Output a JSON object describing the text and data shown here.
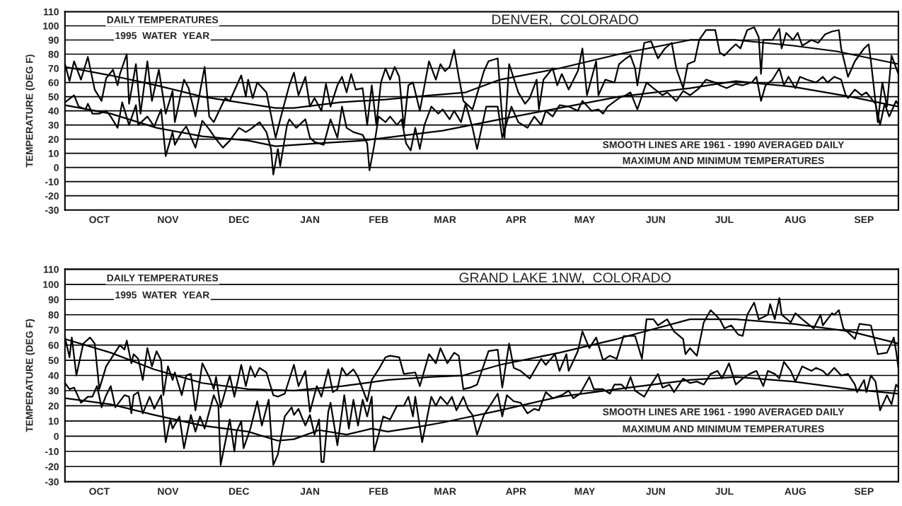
{
  "chart_data": [
    {
      "type": "line",
      "title": "DENVER,  COLORADO",
      "ylabel": "TEMPERATURE (DEG F)",
      "annotations": [
        "DAILY TEMPERATURES",
        "1995  WATER  YEAR",
        "SMOOTH LINES ARE 1961 - 1990 AVERAGED DAILY",
        "MAXIMUM AND MINIMUM TEMPERATURES"
      ],
      "xlim": [
        "1994-10-01",
        "1995-09-30"
      ],
      "xticks": [
        {
          "value": "1994-10-16",
          "label": "OCT"
        },
        {
          "value": "1994-11-15",
          "label": "NOV"
        },
        {
          "value": "1994-12-16",
          "label": "DEC"
        },
        {
          "value": "1995-01-16",
          "label": "JAN"
        },
        {
          "value": "1995-02-15",
          "label": "FEB"
        },
        {
          "value": "1995-03-16",
          "label": "MAR"
        },
        {
          "value": "1995-04-16",
          "label": "APR"
        },
        {
          "value": "1995-05-16",
          "label": "MAY"
        },
        {
          "value": "1995-06-16",
          "label": "JUN"
        },
        {
          "value": "1995-07-16",
          "label": "JUL"
        },
        {
          "value": "1995-08-16",
          "label": "AUG"
        },
        {
          "value": "1995-09-15",
          "label": "SEP"
        }
      ],
      "ylim": [
        -30,
        110
      ],
      "yticks": [
        -30,
        -20,
        -10,
        0,
        10,
        20,
        30,
        40,
        50,
        60,
        70,
        80,
        90,
        100,
        110
      ],
      "grid": "y",
      "series": [
        {
          "color": "#000000",
          "x": [
            "1994-10-01",
            "1994-10-03",
            "1994-10-05",
            "1994-10-08",
            "1994-10-11",
            "1994-10-14",
            "1994-10-17",
            "1994-10-19",
            "1994-10-22",
            "1994-10-24",
            "1994-10-25",
            "1994-10-28",
            "1994-10-29",
            "1994-11-01",
            "1994-11-03",
            "1994-11-06",
            "1994-11-08",
            "1994-11-11",
            "1994-11-14",
            "1994-11-17",
            "1994-11-18",
            "1994-11-20",
            "1994-11-22",
            "1994-11-24",
            "1994-11-27",
            "1994-12-01",
            "1994-12-03",
            "1994-12-05",
            "1994-12-10",
            "1994-12-12",
            "1994-12-17",
            "1994-12-19",
            "1994-12-20",
            "1994-12-22",
            "1994-12-24",
            "1994-12-28",
            "1995-01-01",
            "1995-01-04",
            "1995-01-07",
            "1995-01-09",
            "1995-01-11",
            "1995-01-14",
            "1995-01-16",
            "1995-01-18",
            "1995-01-21",
            "1995-01-23",
            "1995-01-25",
            "1995-01-28",
            "1995-01-30",
            "1995-02-01",
            "1995-02-03",
            "1995-02-05",
            "1995-02-08",
            "1995-02-10",
            "1995-02-12",
            "1995-02-14",
            "1995-02-16",
            "1995-02-18",
            "1995-02-20",
            "1995-02-22",
            "1995-02-24",
            "1995-02-26",
            "1995-02-28",
            "1995-03-02",
            "1995-03-05",
            "1995-03-09",
            "1995-03-12",
            "1995-03-14",
            "1995-03-16",
            "1995-03-18",
            "1995-03-20",
            "1995-03-22",
            "1995-03-24",
            "1995-03-28",
            "1995-04-02",
            "1995-04-04",
            "1995-04-08",
            "1995-04-10",
            "1995-04-11",
            "1995-04-13",
            "1995-04-17",
            "1995-04-20",
            "1995-04-22",
            "1995-04-25",
            "1995-04-26",
            "1995-04-28",
            "1995-05-02",
            "1995-05-04",
            "1995-05-06",
            "1995-05-09",
            "1995-05-13",
            "1995-05-15",
            "1995-05-17",
            "1995-05-21",
            "1995-05-22",
            "1995-05-25",
            "1995-05-29",
            "1995-05-31",
            "1995-06-03",
            "1995-06-05",
            "1995-06-07",
            "1995-06-08",
            "1995-06-11",
            "1995-06-14",
            "1995-06-17",
            "1995-06-20",
            "1995-06-23",
            "1995-06-25",
            "1995-06-28",
            "1995-06-30",
            "1995-07-03",
            "1995-07-05",
            "1995-07-08",
            "1995-07-12",
            "1995-07-14",
            "1995-07-16",
            "1995-07-19",
            "1995-07-21",
            "1995-07-23",
            "1995-07-26",
            "1995-07-29",
            "1995-07-31",
            "1995-08-01",
            "1995-08-02",
            "1995-08-06",
            "1995-08-09",
            "1995-08-10",
            "1995-08-12",
            "1995-08-15",
            "1995-08-17",
            "1995-08-19",
            "1995-08-23",
            "1995-08-26",
            "1995-08-29",
            "1995-09-01",
            "1995-09-04",
            "1995-09-05",
            "1995-09-08",
            "1995-09-11",
            "1995-09-15",
            "1995-09-17",
            "1995-09-18",
            "1995-09-21",
            "1995-09-23",
            "1995-09-25",
            "1995-09-27",
            "1995-09-30"
          ],
          "values": [
            73,
            61,
            75,
            62,
            78,
            55,
            47,
            63,
            69,
            58,
            66,
            80,
            45,
            73,
            38,
            75,
            47,
            69,
            38,
            54,
            32,
            47,
            62,
            56,
            36,
            71,
            36,
            32,
            49,
            47,
            65,
            50,
            62,
            49,
            60,
            53,
            21,
            40,
            58,
            67,
            51,
            64,
            43,
            49,
            40,
            59,
            43,
            58,
            64,
            53,
            66,
            55,
            56,
            30,
            58,
            30,
            60,
            70,
            62,
            71,
            64,
            28,
            58,
            60,
            40,
            75,
            62,
            73,
            68,
            71,
            83,
            64,
            47,
            41,
            68,
            75,
            77,
            34,
            21,
            73,
            53,
            45,
            49,
            62,
            41,
            62,
            70,
            58,
            66,
            55,
            68,
            84,
            51,
            75,
            51,
            62,
            60,
            73,
            77,
            79,
            70,
            58,
            88,
            89,
            77,
            84,
            88,
            70,
            56,
            73,
            75,
            90,
            97,
            97,
            81,
            79,
            84,
            87,
            84,
            97,
            99,
            92,
            66,
            90,
            90,
            98,
            84,
            95,
            90,
            95,
            86,
            90,
            88,
            94,
            96,
            97,
            84,
            64,
            75,
            84,
            87,
            75,
            32,
            60,
            43,
            79,
            66
          ]
        },
        {
          "color": "#000000",
          "x": [
            "1994-10-01",
            "1994-10-05",
            "1994-10-07",
            "1994-10-10",
            "1994-10-11",
            "1994-10-13",
            "1994-10-16",
            "1994-10-19",
            "1994-10-21",
            "1994-10-24",
            "1994-10-26",
            "1994-10-29",
            "1994-11-01",
            "1994-11-02",
            "1994-11-06",
            "1994-11-09",
            "1994-11-12",
            "1994-11-14",
            "1994-11-17",
            "1994-11-18",
            "1994-11-21",
            "1994-11-23",
            "1994-11-27",
            "1994-11-30",
            "1994-12-03",
            "1994-12-06",
            "1994-12-09",
            "1994-12-12",
            "1994-12-16",
            "1994-12-19",
            "1994-12-21",
            "1994-12-25",
            "1994-12-28",
            "1994-12-30",
            "1994-12-31",
            "1995-01-02",
            "1995-01-03",
            "1995-01-06",
            "1995-01-07",
            "1995-01-10",
            "1995-01-14",
            "1995-01-16",
            "1995-01-18",
            "1995-01-22",
            "1995-01-25",
            "1995-01-28",
            "1995-01-30",
            "1995-02-01",
            "1995-02-04",
            "1995-02-08",
            "1995-02-10",
            "1995-02-11",
            "1995-02-13",
            "1995-02-15",
            "1995-02-18",
            "1995-02-20",
            "1995-02-23",
            "1995-02-25",
            "1995-02-27",
            "1995-03-01",
            "1995-03-03",
            "1995-03-05",
            "1995-03-07",
            "1995-03-10",
            "1995-03-13",
            "1995-03-15",
            "1995-03-18",
            "1995-03-20",
            "1995-03-23",
            "1995-03-25",
            "1995-03-28",
            "1995-03-30",
            "1995-04-03",
            "1995-04-08",
            "1995-04-10",
            "1995-04-14",
            "1995-04-17",
            "1995-04-21",
            "1995-04-24",
            "1995-04-27",
            "1995-04-29",
            "1995-05-02",
            "1995-05-05",
            "1995-05-09",
            "1995-05-13",
            "1995-05-15",
            "1995-05-19",
            "1995-05-22",
            "1995-05-24",
            "1995-05-26",
            "1995-05-31",
            "1995-06-03",
            "1995-06-05",
            "1995-06-08",
            "1995-06-12",
            "1995-06-15",
            "1995-06-19",
            "1995-06-21",
            "1995-06-25",
            "1995-06-28",
            "1995-07-01",
            "1995-07-05",
            "1995-07-08",
            "1995-07-12",
            "1995-07-14",
            "1995-07-17",
            "1995-07-21",
            "1995-07-24",
            "1995-07-28",
            "1995-07-30",
            "1995-08-01",
            "1995-08-03",
            "1995-08-06",
            "1995-08-09",
            "1995-08-11",
            "1995-08-13",
            "1995-08-16",
            "1995-08-18",
            "1995-08-21",
            "1995-08-25",
            "1995-08-28",
            "1995-08-30",
            "1995-09-02",
            "1995-09-05",
            "1995-09-07",
            "1995-09-08",
            "1995-09-11",
            "1995-09-14",
            "1995-09-16",
            "1995-09-20",
            "1995-09-22",
            "1995-09-24",
            "1995-09-26",
            "1995-09-29",
            "1995-09-30"
          ],
          "values": [
            46,
            51,
            43,
            41,
            45,
            38,
            38,
            40,
            36,
            28,
            46,
            30,
            44,
            30,
            36,
            29,
            41,
            8,
            25,
            16,
            25,
            29,
            14,
            33,
            27,
            20,
            14,
            19,
            28,
            25,
            27,
            32,
            25,
            13,
            -5,
            13,
            1,
            30,
            34,
            28,
            34,
            21,
            18,
            16,
            34,
            21,
            43,
            28,
            25,
            23,
            17,
            -2,
            15,
            36,
            32,
            36,
            30,
            34,
            17,
            12,
            28,
            13,
            30,
            43,
            38,
            41,
            34,
            40,
            32,
            45,
            28,
            13,
            43,
            43,
            21,
            43,
            32,
            28,
            36,
            30,
            40,
            36,
            44,
            43,
            40,
            47,
            40,
            41,
            38,
            43,
            49,
            51,
            53,
            41,
            60,
            56,
            51,
            53,
            47,
            54,
            51,
            56,
            62,
            60,
            58,
            56,
            59,
            58,
            60,
            64,
            47,
            58,
            62,
            70,
            58,
            64,
            56,
            64,
            62,
            60,
            64,
            60,
            64,
            62,
            51,
            49,
            55,
            51,
            53,
            45,
            30,
            45,
            36,
            47,
            44
          ]
        },
        {
          "color": "#000000",
          "x": [
            "1994-10-01",
            "1994-10-21",
            "1994-11-10",
            "1994-11-30",
            "1994-12-20",
            "1995-01-01",
            "1995-01-09",
            "1995-01-29",
            "1995-02-18",
            "1995-03-10",
            "1995-03-25",
            "1995-04-09",
            "1995-05-05",
            "1995-05-31",
            "1995-07-01",
            "1995-07-21",
            "1995-08-15",
            "1995-09-03",
            "1995-09-30"
          ],
          "values": [
            71,
            65,
            58,
            50,
            45,
            42,
            42,
            46,
            48,
            51,
            53,
            62,
            70,
            80,
            90,
            90,
            86,
            82,
            73
          ]
        },
        {
          "color": "#000000",
          "x": [
            "1994-10-01",
            "1994-10-21",
            "1994-11-10",
            "1994-11-30",
            "1994-12-20",
            "1995-01-01",
            "1995-01-19",
            "1995-02-08",
            "1995-02-28",
            "1995-03-15",
            "1995-04-09",
            "1995-05-05",
            "1995-05-31",
            "1995-07-01",
            "1995-07-21",
            "1995-08-15",
            "1995-09-09",
            "1995-09-30"
          ],
          "values": [
            44,
            38,
            28,
            22,
            19,
            15,
            17,
            19,
            23,
            26,
            34,
            42,
            50,
            56,
            61,
            57,
            50,
            43
          ]
        }
      ]
    },
    {
      "type": "line",
      "title": "GRAND LAKE 1NW,  COLORADO",
      "ylabel": "TEMPERATURE (DEG F)",
      "annotations": [
        "DAILY TEMPERATURES",
        "1995  WATER  YEAR",
        "SMOOTH LINES ARE 1961 - 1990 AVERAGED DAILY",
        "MAXIMUM AND MINIMUM TEMPERATURES"
      ],
      "xlim": [
        "1994-10-01",
        "1995-09-30"
      ],
      "xticks": [
        {
          "value": "1994-10-16",
          "label": "OCT"
        },
        {
          "value": "1994-11-15",
          "label": "NOV"
        },
        {
          "value": "1994-12-16",
          "label": "DEC"
        },
        {
          "value": "1995-01-16",
          "label": "JAN"
        },
        {
          "value": "1995-02-15",
          "label": "FEB"
        },
        {
          "value": "1995-03-16",
          "label": "MAR"
        },
        {
          "value": "1995-04-16",
          "label": "APR"
        },
        {
          "value": "1995-05-16",
          "label": "MAY"
        },
        {
          "value": "1995-06-16",
          "label": "JUN"
        },
        {
          "value": "1995-07-16",
          "label": "JUL"
        },
        {
          "value": "1995-08-16",
          "label": "AUG"
        },
        {
          "value": "1995-09-15",
          "label": "SEP"
        }
      ],
      "ylim": [
        -30,
        110
      ],
      "yticks": [
        -30,
        -20,
        -10,
        0,
        10,
        20,
        30,
        40,
        50,
        60,
        70,
        80,
        90,
        100,
        110
      ],
      "grid": "y",
      "series": [
        {
          "color": "#000000",
          "x": [
            "1994-10-01",
            "1994-10-03",
            "1994-10-04",
            "1994-10-06",
            "1994-10-09",
            "1994-10-12",
            "1994-10-14",
            "1994-10-16",
            "1994-10-19",
            "1994-10-22",
            "1994-10-25",
            "1994-10-27",
            "1994-10-28",
            "1994-10-30",
            "1994-10-31",
            "1994-11-02",
            "1994-11-04",
            "1994-11-06",
            "1994-11-08",
            "1994-11-10",
            "1994-11-12",
            "1994-11-13",
            "1994-11-15",
            "1994-11-17",
            "1994-11-18",
            "1994-11-21",
            "1994-11-23",
            "1994-11-25",
            "1994-11-27",
            "1994-11-30",
            "1994-12-03",
            "1994-12-05",
            "1994-12-06",
            "1994-12-08",
            "1994-12-12",
            "1994-12-14",
            "1994-12-17",
            "1994-12-19",
            "1994-12-21",
            "1994-12-23",
            "1994-12-25",
            "1994-12-28",
            "1994-12-31",
            "1995-01-02",
            "1995-01-05",
            "1995-01-09",
            "1995-01-11",
            "1995-01-14",
            "1995-01-16",
            "1995-01-19",
            "1995-01-21",
            "1995-01-24",
            "1995-01-26",
            "1995-01-28",
            "1995-01-30",
            "1995-02-01",
            "1995-02-04",
            "1995-02-06",
            "1995-02-10",
            "1995-02-12",
            "1995-02-15",
            "1995-02-18",
            "1995-02-20",
            "1995-02-24",
            "1995-02-26",
            "1995-03-03",
            "1995-03-05",
            "1995-03-09",
            "1995-03-12",
            "1995-03-14",
            "1995-03-17",
            "1995-03-20",
            "1995-03-22",
            "1995-03-24",
            "1995-03-27",
            "1995-03-30",
            "1995-04-04",
            "1995-04-08",
            "1995-04-10",
            "1995-04-13",
            "1995-04-15",
            "1995-04-18",
            "1995-04-22",
            "1995-04-27",
            "1995-04-29",
            "1995-05-03",
            "1995-05-05",
            "1995-05-08",
            "1995-05-09",
            "1995-05-13",
            "1995-05-15",
            "1995-05-18",
            "1995-05-21",
            "1995-05-24",
            "1995-05-27",
            "1995-05-30",
            "1995-06-02",
            "1995-06-07",
            "1995-06-10",
            "1995-06-12",
            "1995-06-15",
            "1995-06-17",
            "1995-06-21",
            "1995-06-24",
            "1995-06-28",
            "1995-06-29",
            "1995-07-01",
            "1995-07-04",
            "1995-07-07",
            "1995-07-10",
            "1995-07-14",
            "1995-07-16",
            "1995-07-19",
            "1995-07-22",
            "1995-07-24",
            "1995-07-26",
            "1995-07-29",
            "1995-07-31",
            "1995-08-04",
            "1995-08-05",
            "1995-08-07",
            "1995-08-09",
            "1995-08-10",
            "1995-08-14",
            "1995-08-16",
            "1995-08-19",
            "1995-08-24",
            "1995-08-27",
            "1995-08-28",
            "1995-09-01",
            "1995-09-02",
            "1995-09-04",
            "1995-09-06",
            "1995-09-09",
            "1995-09-11",
            "1995-09-13",
            "1995-09-18",
            "1995-09-21",
            "1995-09-25",
            "1995-09-28",
            "1995-09-29",
            "1995-09-30"
          ],
          "values": [
            65,
            52,
            65,
            40,
            61,
            65,
            61,
            31,
            46,
            53,
            60,
            57,
            63,
            48,
            54,
            51,
            37,
            58,
            46,
            56,
            50,
            27,
            46,
            37,
            42,
            27,
            40,
            41,
            17,
            48,
            39,
            31,
            39,
            19,
            40,
            26,
            47,
            33,
            46,
            39,
            45,
            42,
            27,
            26,
            28,
            47,
            33,
            43,
            16,
            33,
            26,
            44,
            29,
            31,
            45,
            40,
            44,
            39,
            23,
            37,
            44,
            52,
            53,
            52,
            41,
            42,
            33,
            54,
            48,
            58,
            48,
            55,
            53,
            31,
            32,
            34,
            56,
            57,
            32,
            61,
            45,
            43,
            38,
            51,
            47,
            54,
            43,
            54,
            43,
            56,
            69,
            58,
            65,
            50,
            53,
            51,
            66,
            66,
            51,
            77,
            77,
            73,
            77,
            69,
            64,
            54,
            58,
            53,
            75,
            83,
            77,
            71,
            73,
            67,
            66,
            80,
            88,
            77,
            80,
            87,
            77,
            91,
            80,
            75,
            81,
            77,
            71,
            80,
            73,
            81,
            80,
            83,
            71,
            67,
            64,
            74,
            73,
            54,
            55,
            65,
            56,
            45
          ]
        },
        {
          "color": "#000000",
          "x": [
            "1994-10-01",
            "1994-10-03",
            "1994-10-05",
            "1994-10-08",
            "1994-10-11",
            "1994-10-13",
            "1994-10-15",
            "1994-10-17",
            "1994-10-19",
            "1994-10-21",
            "1994-10-23",
            "1994-10-27",
            "1994-10-29",
            "1994-10-30",
            "1994-10-31",
            "1994-11-02",
            "1994-11-04",
            "1994-11-07",
            "1994-11-09",
            "1994-11-12",
            "1994-11-14",
            "1994-11-16",
            "1994-11-17",
            "1994-11-20",
            "1994-11-22",
            "1994-11-25",
            "1994-11-27",
            "1994-11-29",
            "1994-12-01",
            "1994-12-05",
            "1994-12-07",
            "1994-12-08",
            "1994-12-10",
            "1994-12-12",
            "1994-12-14",
            "1994-12-15",
            "1994-12-17",
            "1994-12-18",
            "1994-12-21",
            "1994-12-24",
            "1994-12-26",
            "1994-12-29",
            "1994-12-31",
            "1995-01-02",
            "1995-01-05",
            "1995-01-08",
            "1995-01-09",
            "1995-01-11",
            "1995-01-14",
            "1995-01-16",
            "1995-01-18",
            "1995-01-20",
            "1995-01-21",
            "1995-01-22",
            "1995-01-24",
            "1995-01-25",
            "1995-01-28",
            "1995-01-31",
            "1995-02-02",
            "1995-02-04",
            "1995-02-06",
            "1995-02-08",
            "1995-02-10",
            "1995-02-12",
            "1995-02-13",
            "1995-02-15",
            "1995-02-17",
            "1995-02-20",
            "1995-02-23",
            "1995-02-26",
            "1995-02-28",
            "1995-03-02",
            "1995-03-03",
            "1995-03-06",
            "1995-03-10",
            "1995-03-12",
            "1995-03-14",
            "1995-03-17",
            "1995-03-19",
            "1995-03-21",
            "1995-03-24",
            "1995-03-26",
            "1995-03-28",
            "1995-03-30",
            "1995-04-02",
            "1995-04-05",
            "1995-04-08",
            "1995-04-10",
            "1995-04-12",
            "1995-04-15",
            "1995-04-18",
            "1995-04-21",
            "1995-04-24",
            "1995-04-26",
            "1995-04-29",
            "1995-05-02",
            "1995-05-06",
            "1995-05-09",
            "1995-05-11",
            "1995-05-14",
            "1995-05-18",
            "1995-05-20",
            "1995-05-24",
            "1995-05-27",
            "1995-05-29",
            "1995-06-01",
            "1995-06-03",
            "1995-06-05",
            "1995-06-07",
            "1995-06-11",
            "1995-06-14",
            "1995-06-17",
            "1995-06-19",
            "1995-06-22",
            "1995-06-24",
            "1995-06-28",
            "1995-07-01",
            "1995-07-04",
            "1995-07-07",
            "1995-07-10",
            "1995-07-13",
            "1995-07-15",
            "1995-07-18",
            "1995-07-21",
            "1995-07-24",
            "1995-07-27",
            "1995-07-30",
            "1995-08-02",
            "1995-08-04",
            "1995-08-07",
            "1995-08-09",
            "1995-08-11",
            "1995-08-14",
            "1995-08-16",
            "1995-08-19",
            "1995-08-23",
            "1995-08-25",
            "1995-08-28",
            "1995-08-30",
            "1995-09-02",
            "1995-09-05",
            "1995-09-08",
            "1995-09-11",
            "1995-09-12",
            "1995-09-15",
            "1995-09-16",
            "1995-09-18",
            "1995-09-20",
            "1995-09-22",
            "1995-09-25",
            "1995-09-27",
            "1995-09-29",
            "1995-09-30"
          ],
          "values": [
            35,
            31,
            32,
            22,
            26,
            26,
            33,
            19,
            27,
            33,
            19,
            27,
            26,
            15,
            27,
            29,
            15,
            26,
            18,
            27,
            -4,
            11,
            5,
            13,
            -8,
            14,
            3,
            13,
            5,
            27,
            20,
            -19,
            -4,
            11,
            -10,
            3,
            10,
            -8,
            5,
            23,
            7,
            24,
            -19,
            -12,
            13,
            19,
            14,
            18,
            7,
            14,
            1,
            11,
            -17,
            -17,
            16,
            22,
            -6,
            27,
            5,
            24,
            7,
            24,
            13,
            26,
            -10,
            1,
            13,
            11,
            20,
            20,
            26,
            13,
            26,
            -4,
            26,
            20,
            26,
            21,
            26,
            17,
            26,
            18,
            14,
            1,
            14,
            21,
            28,
            13,
            27,
            23,
            22,
            15,
            18,
            17,
            29,
            25,
            27,
            30,
            25,
            28,
            39,
            31,
            31,
            28,
            34,
            34,
            31,
            39,
            30,
            26,
            34,
            41,
            32,
            34,
            29,
            38,
            35,
            36,
            34,
            41,
            43,
            38,
            48,
            34,
            38,
            41,
            43,
            33,
            43,
            41,
            38,
            49,
            43,
            36,
            46,
            43,
            45,
            43,
            40,
            45,
            40,
            41,
            34,
            29,
            37,
            29,
            40,
            36,
            17,
            27,
            21,
            34,
            32
          ]
        },
        {
          "color": "#000000",
          "x": [
            "1994-10-01",
            "1994-10-21",
            "1994-11-09",
            "1994-11-30",
            "1994-12-20",
            "1995-01-09",
            "1995-01-30",
            "1995-02-19",
            "1995-03-10",
            "1995-03-24",
            "1995-04-09",
            "1995-05-05",
            "1995-05-30",
            "1995-07-01",
            "1995-07-21",
            "1995-08-15",
            "1995-09-09",
            "1995-09-30"
          ],
          "values": [
            64,
            55,
            44,
            35,
            31,
            30,
            33,
            37,
            39,
            40,
            47,
            55,
            64,
            77,
            77,
            74,
            69,
            61
          ]
        },
        {
          "color": "#000000",
          "x": [
            "1994-10-01",
            "1994-10-21",
            "1994-11-09",
            "1994-11-30",
            "1994-12-20",
            "1995-01-02",
            "1995-01-09",
            "1995-01-20",
            "1995-02-01",
            "1995-02-12",
            "1995-02-19",
            "1995-03-04",
            "1995-03-15",
            "1995-04-09",
            "1995-05-05",
            "1995-05-30",
            "1995-07-01",
            "1995-07-21",
            "1995-08-15",
            "1995-09-09",
            "1995-09-30"
          ],
          "values": [
            25,
            21,
            14,
            7,
            3,
            -3,
            -2,
            4,
            1,
            5,
            3,
            6,
            9,
            17,
            26,
            31,
            37,
            39,
            36,
            31,
            28
          ]
        }
      ]
    }
  ]
}
